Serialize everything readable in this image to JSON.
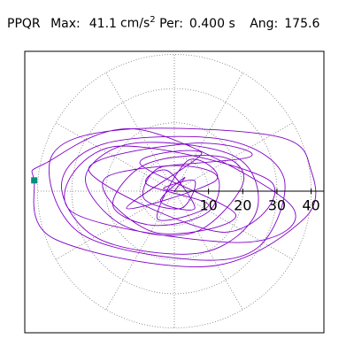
{
  "chart_data": {
    "type": "polar-trace",
    "station": "PPQR",
    "max_label": "Max:",
    "max": 41.1,
    "max_unit": "cm/s",
    "max_unit_exp": "2",
    "period_label": "Per:",
    "period": "0.400 s",
    "angle_label": "Ang:",
    "angle": 175.6,
    "rlim": [
      0,
      44
    ],
    "rticks": [
      10,
      20,
      30,
      40
    ],
    "thetaticks": [
      0,
      30,
      60,
      90,
      120,
      150,
      180,
      210,
      240,
      270,
      300,
      330
    ],
    "grid": true,
    "marker_color": "#009080",
    "trace": {
      "color": "#8000c8",
      "x": [
        0,
        3,
        -4,
        6,
        -2,
        -8,
        10,
        -5,
        4,
        12,
        -14,
        8,
        -10,
        18,
        -6,
        -20,
        22,
        5,
        -25,
        14,
        28,
        -18,
        -30,
        20,
        34,
        -10,
        -38,
        -41,
        -35,
        10,
        38,
        40,
        30,
        -15,
        -36,
        -28,
        5,
        25,
        32,
        15,
        -20,
        -33,
        -22,
        8,
        24,
        18,
        -12,
        -26,
        -15,
        6,
        20,
        14,
        -8,
        -18,
        -6,
        10,
        12,
        -4,
        -9,
        2,
        6,
        -3,
        0
      ],
      "y": [
        0,
        4,
        -3,
        -5,
        6,
        2,
        -4,
        -8,
        9,
        3,
        -5,
        11,
        8,
        -7,
        -12,
        4,
        10,
        14,
        6,
        -12,
        3,
        13,
        -6,
        -15,
        -4,
        18,
        8,
        3,
        -14,
        -22,
        -8,
        6,
        16,
        18,
        10,
        -12,
        -20,
        -16,
        4,
        15,
        14,
        2,
        -14,
        -18,
        -6,
        10,
        14,
        4,
        -10,
        -12,
        2,
        10,
        8,
        -4,
        -10,
        -6,
        5,
        7,
        -2,
        -5,
        3,
        1,
        0
      ]
    }
  }
}
